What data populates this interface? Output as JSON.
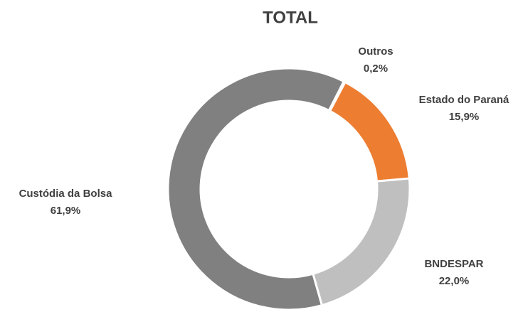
{
  "chart_data": {
    "type": "donut",
    "title": "TOTAL",
    "categories": [
      "Outros",
      "Estado do Paraná",
      "BNDESPAR",
      "Custódia da Bolsa"
    ],
    "values": [
      0.2,
      15.9,
      22.0,
      61.9
    ],
    "value_labels": [
      "0,2%",
      "15,9%",
      "22,0%",
      "61,9%"
    ],
    "colors": [
      "#4472c4",
      "#ed7d31",
      "#bfbfbf",
      "#808080"
    ]
  }
}
